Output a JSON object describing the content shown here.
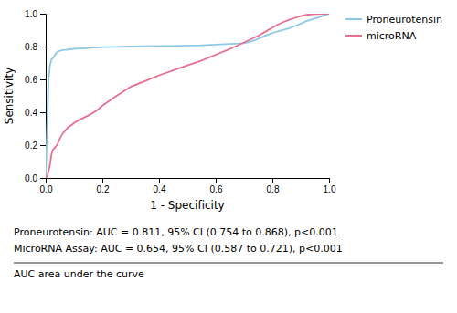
{
  "chart_data": {
    "type": "line",
    "xlabel": "1 - Specificity",
    "ylabel": "Sensitivity",
    "xlim": [
      0.0,
      1.0
    ],
    "ylim": [
      0.0,
      1.0
    ],
    "xticks": [
      {
        "value": 0.0,
        "label": "0.0"
      },
      0.2,
      0.4,
      0.6,
      0.8,
      {
        "value": 1.0,
        "label": "1.0"
      }
    ],
    "yticks": [
      {
        "value": 0.0,
        "label": "0.0"
      },
      0.2,
      0.4,
      0.6,
      0.8,
      {
        "value": 1.0,
        "label": "1.0"
      }
    ],
    "grid": false,
    "legend": "right",
    "annotations": [
      "Proneurotensin: AUC = 0.811, 95% CI (0.754 to 0.868), p<0.001",
      "MicroRNA Assay: AUC = 0.654, 95% CI (0.587 to 0.721), p<0.001",
      "AUC area under the curve"
    ],
    "series": [
      {
        "name": "Proneurotensin",
        "color": "#8ec8e8",
        "x": [
          0.0,
          0.005,
          0.01,
          0.015,
          0.02,
          0.025,
          0.03,
          0.035,
          0.04,
          0.05,
          0.06,
          0.07,
          0.08,
          0.09,
          0.1,
          0.12,
          0.14,
          0.16,
          0.18,
          0.2,
          0.25,
          0.3,
          0.35,
          0.4,
          0.45,
          0.5,
          0.55,
          0.6,
          0.65,
          0.7,
          0.72,
          0.74,
          0.76,
          0.78,
          0.8,
          0.82,
          0.84,
          0.86,
          0.88,
          0.9,
          0.92,
          0.95,
          1.0
        ],
        "values": [
          0.0,
          0.3,
          0.6,
          0.68,
          0.72,
          0.73,
          0.74,
          0.755,
          0.765,
          0.775,
          0.778,
          0.78,
          0.782,
          0.784,
          0.786,
          0.788,
          0.79,
          0.792,
          0.794,
          0.796,
          0.798,
          0.8,
          0.802,
          0.803,
          0.804,
          0.806,
          0.808,
          0.812,
          0.816,
          0.82,
          0.828,
          0.84,
          0.855,
          0.87,
          0.882,
          0.893,
          0.902,
          0.912,
          0.925,
          0.94,
          0.955,
          0.97,
          1.0
        ]
      },
      {
        "name": "microRNA",
        "color": "#e87090",
        "x": [
          0.0,
          0.005,
          0.01,
          0.015,
          0.02,
          0.025,
          0.03,
          0.04,
          0.05,
          0.06,
          0.07,
          0.08,
          0.09,
          0.1,
          0.12,
          0.15,
          0.18,
          0.2,
          0.25,
          0.3,
          0.35,
          0.4,
          0.45,
          0.5,
          0.55,
          0.6,
          0.65,
          0.7,
          0.75,
          0.78,
          0.8,
          0.82,
          0.84,
          0.86,
          0.88,
          0.9,
          0.92,
          0.95,
          1.0
        ],
        "values": [
          0.0,
          0.01,
          0.04,
          0.08,
          0.14,
          0.17,
          0.18,
          0.2,
          0.24,
          0.27,
          0.29,
          0.31,
          0.32,
          0.335,
          0.355,
          0.38,
          0.41,
          0.44,
          0.5,
          0.555,
          0.59,
          0.625,
          0.655,
          0.685,
          0.715,
          0.75,
          0.785,
          0.825,
          0.865,
          0.895,
          0.915,
          0.935,
          0.95,
          0.963,
          0.975,
          0.985,
          0.993,
          0.998,
          1.0
        ]
      }
    ]
  }
}
